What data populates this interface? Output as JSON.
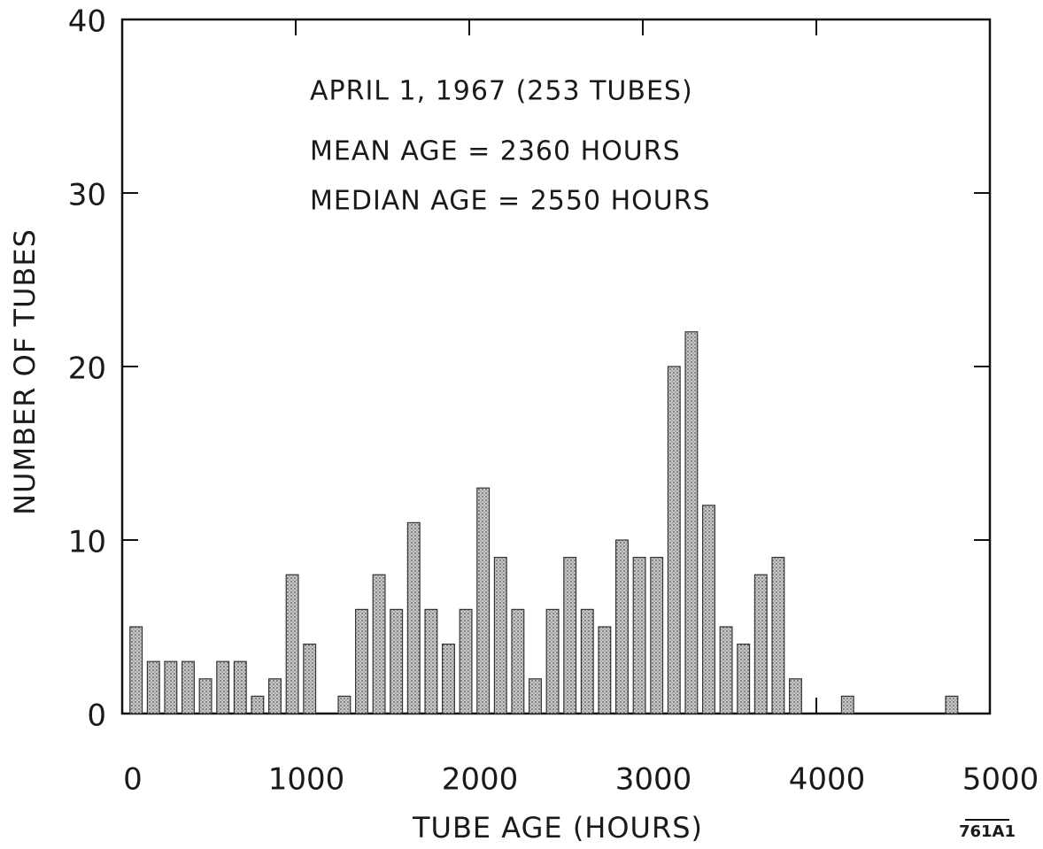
{
  "chart_data": {
    "type": "histogram",
    "xlabel": "TUBE AGE (HOURS)",
    "ylabel": "NUMBER OF TUBES",
    "annotations": [
      "APRIL 1, 1967 (253 TUBES)",
      "MEAN AGE = 2360 HOURS",
      "MEDIAN AGE = 2550 HOURS"
    ],
    "figure_id": "761A1",
    "bins": [
      0,
      100,
      200,
      300,
      400,
      500,
      600,
      700,
      800,
      900,
      1000,
      1100,
      1200,
      1300,
      1400,
      1500,
      1600,
      1700,
      1800,
      1900,
      2000,
      2100,
      2200,
      2300,
      2400,
      2500,
      2600,
      2700,
      2800,
      2900,
      3000,
      3100,
      3200,
      3300,
      3400,
      3500,
      3600,
      3700,
      3800,
      3900,
      4000,
      4100,
      4200,
      4300,
      4400,
      4500,
      4600,
      4700,
      4800,
      4900,
      5000
    ],
    "values": [
      5,
      3,
      3,
      3,
      2,
      3,
      3,
      1,
      2,
      8,
      4,
      0,
      1,
      6,
      8,
      6,
      11,
      6,
      4,
      6,
      13,
      9,
      6,
      2,
      6,
      9,
      6,
      5,
      10,
      9,
      9,
      20,
      22,
      12,
      5,
      4,
      8,
      9,
      2,
      0,
      0,
      1,
      0,
      0,
      0,
      0,
      0,
      1,
      0,
      0
    ],
    "color": "#b0b0b0",
    "xlim": [
      0,
      5000
    ],
    "xticks": [
      0,
      1000,
      2000,
      3000,
      4000,
      5000
    ],
    "ylim": [
      0,
      40
    ],
    "yticks": [
      0,
      10,
      20,
      30,
      40
    ]
  }
}
